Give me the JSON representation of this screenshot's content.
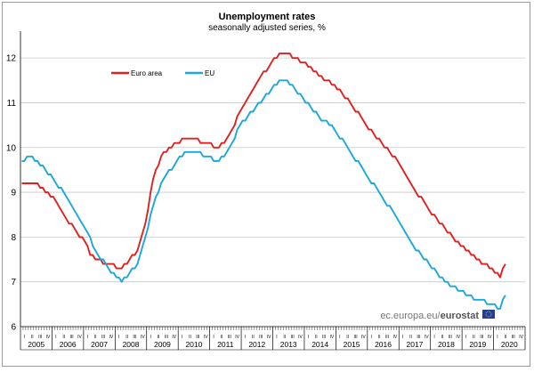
{
  "chart_data": {
    "type": "line",
    "title": "Unemployment rates",
    "subtitle": "seasonally adjusted series, %",
    "xlabel": "",
    "ylabel": "",
    "ylim": [
      6,
      12.5
    ],
    "yticks": [
      6,
      7,
      8,
      9,
      10,
      11,
      12
    ],
    "years": [
      "2005",
      "2006",
      "2007",
      "2008",
      "2009",
      "2010",
      "2011",
      "2012",
      "2013",
      "2014",
      "2015",
      "2016",
      "2017",
      "2018",
      "2019",
      "2020"
    ],
    "quarter_labels": [
      "I",
      "II",
      "III",
      "IV"
    ],
    "grid": true,
    "legend_position": "top-left",
    "source": {
      "prefix": "ec.europa.eu/",
      "brand": "eurostat"
    },
    "x_start": "2005-01",
    "series": [
      {
        "name": "Euro area",
        "color": "#e0201f",
        "monthly_anchors": [
          [
            "2005-01",
            9.2
          ],
          [
            "2005-06",
            9.2
          ],
          [
            "2006-01",
            8.9
          ],
          [
            "2006-06",
            8.4
          ],
          [
            "2007-01",
            7.9
          ],
          [
            "2007-03",
            7.6
          ],
          [
            "2007-09",
            7.4
          ],
          [
            "2008-03",
            7.3
          ],
          [
            "2008-06",
            7.5
          ],
          [
            "2008-09",
            7.7
          ],
          [
            "2008-12",
            8.3
          ],
          [
            "2009-03",
            9.3
          ],
          [
            "2009-06",
            9.8
          ],
          [
            "2009-12",
            10.1
          ],
          [
            "2010-03",
            10.2
          ],
          [
            "2010-06",
            10.2
          ],
          [
            "2010-12",
            10.1
          ],
          [
            "2011-03",
            10.0
          ],
          [
            "2011-06",
            10.1
          ],
          [
            "2011-09",
            10.4
          ],
          [
            "2011-12",
            10.8
          ],
          [
            "2012-06",
            11.4
          ],
          [
            "2012-12",
            11.9
          ],
          [
            "2013-03",
            12.1
          ],
          [
            "2013-06",
            12.1
          ],
          [
            "2013-12",
            11.9
          ],
          [
            "2014-06",
            11.6
          ],
          [
            "2014-12",
            11.4
          ],
          [
            "2015-06",
            11.0
          ],
          [
            "2015-12",
            10.5
          ],
          [
            "2016-06",
            10.1
          ],
          [
            "2016-12",
            9.7
          ],
          [
            "2017-06",
            9.1
          ],
          [
            "2017-12",
            8.6
          ],
          [
            "2018-06",
            8.2
          ],
          [
            "2018-12",
            7.8
          ],
          [
            "2019-06",
            7.5
          ],
          [
            "2019-12",
            7.3
          ],
          [
            "2020-03",
            7.1
          ],
          [
            "2020-05",
            7.4
          ]
        ]
      },
      {
        "name": "EU",
        "color": "#1aa7dd",
        "monthly_anchors": [
          [
            "2005-01",
            9.7
          ],
          [
            "2005-04",
            9.8
          ],
          [
            "2005-10",
            9.5
          ],
          [
            "2006-06",
            8.9
          ],
          [
            "2007-01",
            8.2
          ],
          [
            "2007-06",
            7.6
          ],
          [
            "2007-10",
            7.3
          ],
          [
            "2008-03",
            7.0
          ],
          [
            "2008-06",
            7.2
          ],
          [
            "2008-09",
            7.4
          ],
          [
            "2008-12",
            8.0
          ],
          [
            "2009-03",
            8.7
          ],
          [
            "2009-06",
            9.2
          ],
          [
            "2009-12",
            9.7
          ],
          [
            "2010-03",
            9.9
          ],
          [
            "2010-06",
            9.9
          ],
          [
            "2010-12",
            9.8
          ],
          [
            "2011-03",
            9.7
          ],
          [
            "2011-06",
            9.8
          ],
          [
            "2011-09",
            10.1
          ],
          [
            "2011-12",
            10.5
          ],
          [
            "2012-06",
            10.9
          ],
          [
            "2012-12",
            11.3
          ],
          [
            "2013-03",
            11.5
          ],
          [
            "2013-06",
            11.5
          ],
          [
            "2013-12",
            11.1
          ],
          [
            "2014-06",
            10.7
          ],
          [
            "2014-12",
            10.4
          ],
          [
            "2015-06",
            9.9
          ],
          [
            "2015-12",
            9.4
          ],
          [
            "2016-06",
            8.9
          ],
          [
            "2016-12",
            8.4
          ],
          [
            "2017-06",
            7.8
          ],
          [
            "2017-12",
            7.4
          ],
          [
            "2018-06",
            7.0
          ],
          [
            "2018-12",
            6.8
          ],
          [
            "2019-06",
            6.6
          ],
          [
            "2019-12",
            6.5
          ],
          [
            "2020-03",
            6.4
          ],
          [
            "2020-05",
            6.7
          ]
        ]
      }
    ]
  }
}
